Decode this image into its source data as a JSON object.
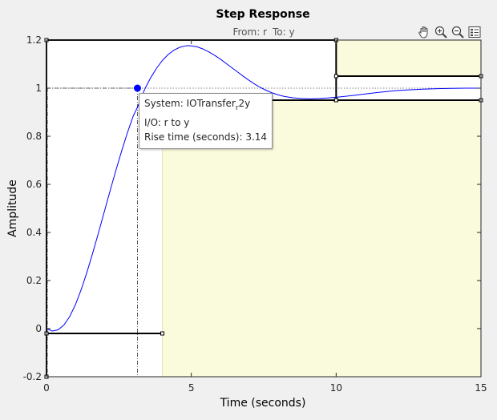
{
  "chart_data": {
    "type": "line",
    "title": "Step Response",
    "subtitle_from_label": "From: r",
    "subtitle_to_label": "To: y",
    "xlabel": "Time (seconds)",
    "ylabel": "Amplitude",
    "xlim": [
      0,
      15
    ],
    "ylim": [
      -0.2,
      1.2
    ],
    "xticks": [
      0,
      5,
      10,
      15
    ],
    "xtick_labels": [
      "0",
      "5",
      "10",
      "15"
    ],
    "yticks": [
      -0.2,
      0,
      0.2,
      0.4,
      0.6,
      0.8,
      1,
      1.2
    ],
    "ytick_labels": [
      "-0.2",
      "0",
      "0.2",
      "0.4",
      "0.6",
      "0.8",
      "1",
      "1.2"
    ],
    "grid": false,
    "series": [
      {
        "color": "#0000ff",
        "x": [
          0,
          0.2,
          0.4,
          0.6,
          0.8,
          1.0,
          1.2,
          1.4,
          1.6,
          1.8,
          2.0,
          2.2,
          2.4,
          2.6,
          2.8,
          3.0,
          3.14,
          3.4,
          3.6,
          3.8,
          4.0,
          4.2,
          4.4,
          4.6,
          4.8,
          4.9,
          5.0,
          5.2,
          5.4,
          5.6,
          5.8,
          6.0,
          6.2,
          6.4,
          6.6,
          6.8,
          7.0,
          7.2,
          7.4,
          7.6,
          7.8,
          8.0,
          8.2,
          8.5,
          8.8,
          9.1,
          9.4,
          9.7,
          10.0,
          10.3,
          10.6,
          11.0,
          11.5,
          12.0,
          12.5,
          13.0,
          13.5,
          14.0,
          14.5,
          15.0
        ],
        "y": [
          0,
          -0.01,
          -0.005,
          0.015,
          0.05,
          0.1,
          0.163,
          0.236,
          0.316,
          0.401,
          0.488,
          0.575,
          0.66,
          0.741,
          0.817,
          0.886,
          0.92,
          0.998,
          1.044,
          1.083,
          1.115,
          1.14,
          1.158,
          1.17,
          1.176,
          1.177,
          1.176,
          1.172,
          1.163,
          1.151,
          1.137,
          1.121,
          1.103,
          1.085,
          1.067,
          1.049,
          1.032,
          1.016,
          1.002,
          0.99,
          0.98,
          0.972,
          0.966,
          0.96,
          0.957,
          0.956,
          0.957,
          0.959,
          0.962,
          0.966,
          0.97,
          0.976,
          0.983,
          0.989,
          0.993,
          0.996,
          0.998,
          0.999,
          1.0,
          1.0
        ]
      }
    ],
    "reference_line_y": 1,
    "datatip": {
      "x": 3.14,
      "y": 1,
      "system_label": "System: IOTransfer",
      "system_sub": "r",
      "system_suffix": "2y",
      "io_label": "I/O: r to y",
      "rise_time_label": "Rise time (seconds): 3.14"
    },
    "constraint_regions": [
      {
        "x": [
          4,
          15
        ],
        "y": [
          -0.2,
          0.95
        ]
      },
      {
        "x": [
          10,
          15
        ],
        "y": [
          1.05,
          1.2
        ]
      }
    ],
    "constraint_segments": [
      {
        "x": [
          0,
          10
        ],
        "y": [
          1.2,
          1.2
        ]
      },
      {
        "x": [
          0,
          0
        ],
        "y": [
          1.2,
          -0.2
        ]
      },
      {
        "x": [
          0,
          4
        ],
        "y": [
          -0.02,
          -0.02
        ]
      },
      {
        "x": [
          4,
          10
        ],
        "y": [
          0.95,
          0.95
        ]
      },
      {
        "x": [
          10,
          10
        ],
        "y": [
          0.95,
          1.2
        ]
      },
      {
        "x": [
          10,
          15
        ],
        "y": [
          1.05,
          1.05
        ]
      },
      {
        "x": [
          10,
          15
        ],
        "y": [
          0.95,
          0.95
        ]
      }
    ],
    "colors": {
      "line": "#0000ff",
      "marker": "#0000ff",
      "region_fill": "#fafadc",
      "region_edge": "#e6e6b4",
      "axes_bg": "#ffffff",
      "constraint_edge": "#000000"
    }
  },
  "toolbar": {
    "icons": [
      "pan-icon",
      "zoom-in-icon",
      "zoom-out-icon",
      "legend-icon"
    ]
  }
}
